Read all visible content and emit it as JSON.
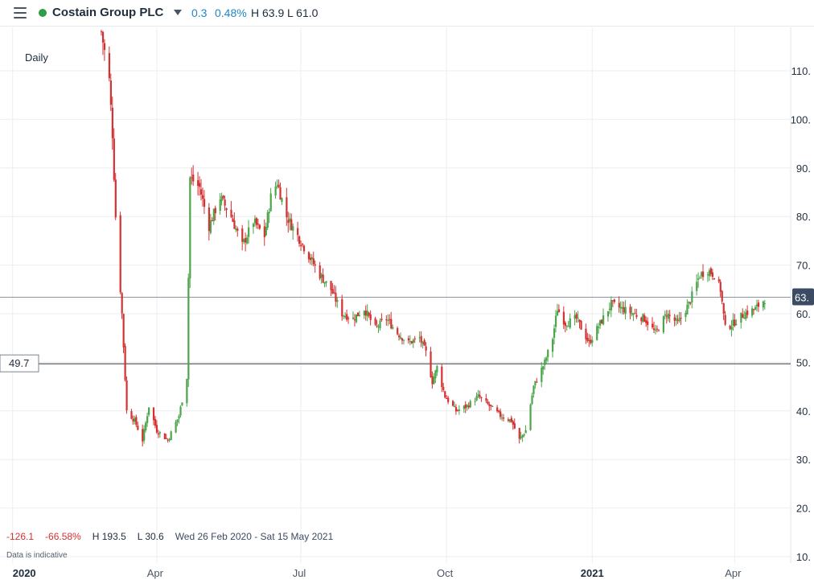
{
  "header": {
    "title": "Costain Group PLC",
    "change": "0.3",
    "change_pct": "0.48%",
    "high": "H 63.9",
    "low": "L 61.0",
    "status_color": "#2e9d44",
    "menu_icon": "hamburger-icon",
    "dropdown_icon": "caret-down-icon"
  },
  "interval_label": "Daily",
  "stats": {
    "change": "-126.1",
    "change_pct": "-66.58%",
    "high": "H 193.5",
    "low": "L 30.6",
    "range": "Wed 26 Feb 2020 - Sat 15 May 2021"
  },
  "note": "Data is indicative",
  "colors": {
    "up": "#4ba54a",
    "down": "#d63031",
    "accent": "#1f87c6",
    "price_badge": "#3b4b63"
  },
  "chart_data": {
    "type": "candlestick",
    "title": "",
    "xlabel": "",
    "ylabel": "",
    "ylim": [
      10,
      120
    ],
    "y_ticks": [
      "110.",
      "100.",
      "90.",
      "80.",
      "70.",
      "60.",
      "50.",
      "40.",
      "30.",
      "20.",
      "10."
    ],
    "x_ticks": [
      {
        "label": "2020",
        "date": "2020-01-01",
        "major": true
      },
      {
        "label": "Apr",
        "date": "2020-04-01",
        "major": false
      },
      {
        "label": "Jul",
        "date": "2020-07-01",
        "major": false
      },
      {
        "label": "Oct",
        "date": "2020-10-01",
        "major": false
      },
      {
        "label": "2021",
        "date": "2021-01-01",
        "major": true
      },
      {
        "label": "Apr",
        "date": "2021-04-01",
        "major": false
      }
    ],
    "x_range": [
      "2019-12-24",
      "2021-05-15"
    ],
    "current_price": {
      "value": 63.4,
      "label": "63."
    },
    "reference_line": {
      "value": 49.7,
      "label": "49.7"
    },
    "grid": true,
    "anchors": [
      [
        "2020-02-26",
        118
      ],
      [
        "2020-03-02",
        108
      ],
      [
        "2020-03-04",
        97
      ],
      [
        "2020-03-06",
        80
      ],
      [
        "2020-03-10",
        60
      ],
      [
        "2020-03-13",
        40
      ],
      [
        "2020-03-18",
        38
      ],
      [
        "2020-03-23",
        34
      ],
      [
        "2020-03-27",
        41
      ],
      [
        "2020-04-01",
        36
      ],
      [
        "2020-04-08",
        34
      ],
      [
        "2020-04-15",
        39
      ],
      [
        "2020-04-20",
        47
      ],
      [
        "2020-04-22",
        88
      ],
      [
        "2020-04-28",
        86
      ],
      [
        "2020-05-04",
        78
      ],
      [
        "2020-05-11",
        84
      ],
      [
        "2020-05-18",
        80
      ],
      [
        "2020-05-25",
        74
      ],
      [
        "2020-06-01",
        79
      ],
      [
        "2020-06-08",
        76
      ],
      [
        "2020-06-12",
        84
      ],
      [
        "2020-06-16",
        87
      ],
      [
        "2020-06-22",
        80
      ],
      [
        "2020-06-29",
        76
      ],
      [
        "2020-07-06",
        72
      ],
      [
        "2020-07-13",
        68
      ],
      [
        "2020-07-20",
        65
      ],
      [
        "2020-07-27",
        60
      ],
      [
        "2020-08-03",
        59
      ],
      [
        "2020-08-10",
        61
      ],
      [
        "2020-08-17",
        57
      ],
      [
        "2020-08-24",
        59
      ],
      [
        "2020-08-31",
        56
      ],
      [
        "2020-09-07",
        54
      ],
      [
        "2020-09-14",
        55
      ],
      [
        "2020-09-18",
        52
      ],
      [
        "2020-09-22",
        46
      ],
      [
        "2020-09-25",
        49
      ],
      [
        "2020-09-30",
        43
      ],
      [
        "2020-10-07",
        40
      ],
      [
        "2020-10-14",
        41
      ],
      [
        "2020-10-21",
        43
      ],
      [
        "2020-10-28",
        41
      ],
      [
        "2020-11-04",
        39
      ],
      [
        "2020-11-11",
        38
      ],
      [
        "2020-11-16",
        34
      ],
      [
        "2020-11-20",
        36
      ],
      [
        "2020-11-25",
        45
      ],
      [
        "2020-12-02",
        50
      ],
      [
        "2020-12-07",
        55
      ],
      [
        "2020-12-10",
        61
      ],
      [
        "2020-12-15",
        58
      ],
      [
        "2020-12-22",
        59
      ],
      [
        "2020-12-30",
        54
      ],
      [
        "2021-01-06",
        58
      ],
      [
        "2021-01-13",
        62
      ],
      [
        "2021-01-20",
        61
      ],
      [
        "2021-01-27",
        60
      ],
      [
        "2021-02-03",
        59
      ],
      [
        "2021-02-10",
        56
      ],
      [
        "2021-02-17",
        60
      ],
      [
        "2021-02-24",
        58
      ],
      [
        "2021-03-03",
        62
      ],
      [
        "2021-03-10",
        68
      ],
      [
        "2021-03-15",
        69
      ],
      [
        "2021-03-19",
        68
      ],
      [
        "2021-03-23",
        65
      ],
      [
        "2021-03-26",
        57
      ],
      [
        "2021-03-31",
        58
      ],
      [
        "2021-04-07",
        60
      ],
      [
        "2021-04-14",
        61
      ],
      [
        "2021-04-20",
        63
      ]
    ]
  }
}
